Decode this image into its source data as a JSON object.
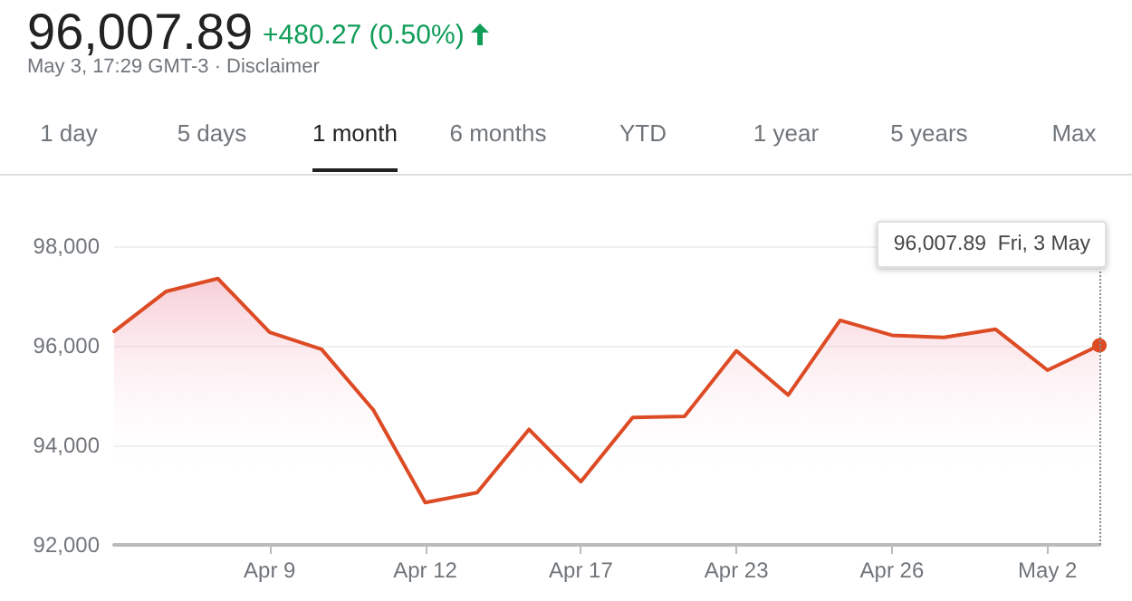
{
  "chart_data": {
    "type": "area",
    "title": "96,007.89",
    "subtitle": "May 3, 17:29 GMT-3 · Disclaimer",
    "annotations": [
      "+480.27 (0.50%)",
      "96,007.89  Fri, 3 May",
      "1 day",
      "5 days",
      "1 month",
      "6 months",
      "YTD",
      "1 year",
      "5 years",
      "Max"
    ],
    "categories": [
      null,
      null,
      null,
      "Apr 9",
      null,
      null,
      "Apr 12",
      null,
      null,
      "Apr 17",
      null,
      null,
      "Apr 23",
      null,
      null,
      "Apr 26",
      null,
      null,
      "May 2",
      null
    ],
    "series": [
      {
        "color": "#dd4b25",
        "values": [
          96290,
          97090,
          97350,
          96270,
          95930,
          94710,
          92850,
          93050,
          94320,
          93270,
          94560,
          94580,
          95900,
          95010,
          96510,
          96210,
          96170,
          96330,
          95510,
          96007.89
        ]
      }
    ],
    "ylim": [
      92000,
      98000
    ],
    "yticks": [
      {
        "value": 92000,
        "label": "92,000"
      },
      {
        "value": 94000,
        "label": "94,000"
      },
      {
        "value": 96000,
        "label": "96,000"
      },
      {
        "value": 98000,
        "label": "98,000"
      }
    ],
    "grid": "y",
    "marker": "none",
    "line_style": "solid"
  }
}
